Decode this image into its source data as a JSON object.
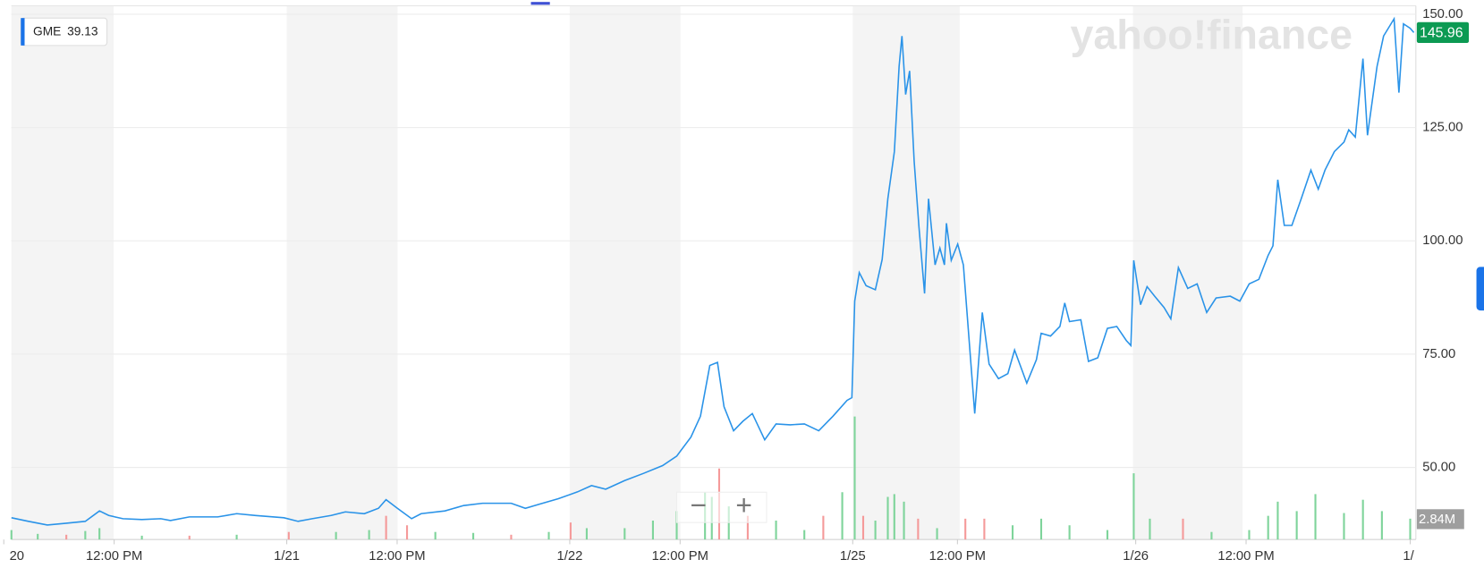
{
  "chart_data": {
    "type": "line",
    "watermark": "yahoo!finance",
    "legend": {
      "symbol": "GME",
      "value": 39.13
    },
    "controls": [
      "−",
      "+"
    ],
    "xlim": [
      0,
      5
    ],
    "xticks": [
      {
        "value": 0,
        "label": "20"
      },
      {
        "value": 0.39,
        "label": "12:00 PM"
      },
      {
        "value": 1,
        "label": "1/21"
      },
      {
        "value": 1.39,
        "label": "12:00 PM"
      },
      {
        "value": 2,
        "label": "1/22"
      },
      {
        "value": 2.39,
        "label": "12:00 PM"
      },
      {
        "value": 3,
        "label": "1/25"
      },
      {
        "value": 3.37,
        "label": "12:00 PM"
      },
      {
        "value": 4,
        "label": "1/26"
      },
      {
        "value": 4.39,
        "label": "12:00 PM"
      },
      {
        "value": 4.97,
        "label": "1/"
      }
    ],
    "ylim": [
      34.1,
      150
    ],
    "yticks": [
      {
        "value": 50,
        "label": "50.00"
      },
      {
        "value": 75,
        "label": "75.00"
      },
      {
        "value": 100,
        "label": "100.00"
      },
      {
        "value": 125,
        "label": "125.00"
      },
      {
        "value": 150,
        "label": "150.00"
      }
    ],
    "grid": true,
    "series": [
      {
        "name": "GME",
        "color": "#2a93e8",
        "x": [
          0.027,
          0.087,
          0.154,
          0.221,
          0.288,
          0.338,
          0.371,
          0.421,
          0.488,
          0.555,
          0.589,
          0.656,
          0.756,
          0.823,
          0.89,
          0.99,
          1.04,
          1.09,
          1.157,
          1.207,
          1.274,
          1.324,
          1.351,
          1.391,
          1.441,
          1.475,
          1.559,
          1.625,
          1.692,
          1.793,
          1.843,
          1.893,
          1.96,
          2.027,
          2.077,
          2.127,
          2.194,
          2.261,
          2.328,
          2.378,
          2.428,
          2.462,
          2.495,
          2.522,
          2.545,
          2.579,
          2.612,
          2.645,
          2.689,
          2.729,
          2.779,
          2.829,
          2.88,
          2.93,
          2.98,
          2.997,
          3.007,
          3.023,
          3.047,
          3.08,
          3.104,
          3.124,
          3.147,
          3.164,
          3.174,
          3.187,
          3.201,
          3.217,
          3.234,
          3.254,
          3.268,
          3.291,
          3.308,
          3.324,
          3.331,
          3.348,
          3.371,
          3.391,
          3.431,
          3.458,
          3.482,
          3.515,
          3.548,
          3.572,
          3.615,
          3.649,
          3.666,
          3.699,
          3.732,
          3.749,
          3.766,
          3.806,
          3.833,
          3.866,
          3.9,
          3.933,
          3.967,
          3.983,
          3.993,
          4.017,
          4.04,
          4.067,
          4.1,
          4.124,
          4.151,
          4.184,
          4.217,
          4.251,
          4.284,
          4.334,
          4.368,
          4.401,
          4.435,
          4.468,
          4.485,
          4.502,
          4.525,
          4.552,
          4.585,
          4.619,
          4.645,
          4.669,
          4.702,
          4.736,
          4.753,
          4.776,
          4.803,
          4.819,
          4.853,
          4.876,
          4.913,
          4.93,
          4.946,
          4.97,
          4.983
        ],
        "values": [
          38.9,
          38.1,
          37.3,
          37.7,
          38.1,
          40.4,
          39.4,
          38.7,
          38.5,
          38.7,
          38.3,
          39.1,
          39.1,
          39.8,
          39.4,
          38.9,
          38.1,
          38.7,
          39.4,
          40.2,
          39.8,
          41.0,
          42.9,
          41.0,
          38.7,
          39.8,
          40.4,
          41.6,
          42.1,
          42.1,
          41.0,
          41.9,
          43.1,
          44.6,
          46.0,
          45.2,
          47.1,
          48.7,
          50.4,
          52.5,
          56.7,
          61.3,
          72.5,
          73.2,
          63.4,
          58.1,
          60.2,
          61.9,
          56.1,
          59.6,
          59.4,
          59.6,
          58.1,
          61.3,
          64.8,
          65.4,
          86.7,
          93.0,
          90.1,
          89.2,
          95.9,
          109.3,
          119.7,
          138.5,
          145.2,
          132.3,
          137.5,
          117.6,
          103.0,
          88.4,
          109.3,
          94.7,
          98.4,
          94.7,
          103.9,
          95.7,
          99.3,
          94.7,
          61.9,
          84.2,
          72.8,
          69.6,
          70.7,
          75.9,
          68.6,
          73.8,
          79.6,
          79.0,
          81.1,
          86.3,
          82.2,
          82.6,
          73.4,
          74.2,
          80.7,
          81.1,
          78.0,
          76.9,
          95.7,
          85.9,
          89.9,
          87.8,
          85.3,
          82.8,
          94.1,
          89.5,
          90.5,
          84.2,
          87.4,
          87.8,
          86.7,
          90.5,
          91.5,
          96.8,
          98.9,
          113.5,
          103.4,
          103.4,
          109.3,
          115.6,
          111.4,
          115.6,
          119.7,
          121.8,
          124.5,
          122.9,
          140.2,
          123.3,
          138.5,
          145.2,
          149.0,
          132.7,
          147.9,
          146.9,
          145.96
        ]
      }
    ],
    "volume": {
      "vlim": [
        0,
        20
      ],
      "x": [
        0.027,
        0.12,
        0.221,
        0.288,
        0.338,
        0.488,
        0.656,
        0.823,
        1.007,
        1.174,
        1.291,
        1.351,
        1.425,
        1.525,
        1.659,
        1.793,
        1.926,
        2.003,
        2.06,
        2.194,
        2.294,
        2.378,
        2.478,
        2.502,
        2.528,
        2.562,
        2.629,
        2.729,
        2.829,
        2.896,
        2.963,
        3.007,
        3.037,
        3.08,
        3.124,
        3.147,
        3.181,
        3.231,
        3.298,
        3.398,
        3.465,
        3.565,
        3.666,
        3.766,
        3.9,
        3.993,
        4.05,
        4.167,
        4.268,
        4.401,
        4.468,
        4.502,
        4.569,
        4.635,
        4.736,
        4.803,
        4.87,
        4.97
      ],
      "values": [
        1.29,
        0.77,
        0.65,
        1.16,
        1.55,
        0.52,
        0.52,
        0.65,
        1.03,
        1.03,
        1.29,
        3.23,
        1.94,
        1.03,
        0.9,
        0.65,
        1.03,
        2.32,
        1.55,
        1.55,
        2.58,
        3.87,
        6.45,
        5.81,
        9.68,
        4.52,
        3.23,
        2.58,
        1.29,
        3.23,
        6.45,
        16.77,
        3.23,
        2.58,
        5.81,
        6.19,
        5.16,
        2.84,
        1.55,
        2.84,
        2.84,
        1.94,
        2.84,
        1.94,
        1.29,
        9.03,
        2.84,
        2.84,
        1.03,
        1.29,
        3.23,
        5.16,
        3.87,
        6.19,
        3.61,
        5.42,
        3.87,
        2.84
      ],
      "value_labels_last": "2.84M",
      "up_color": "#7fd49b",
      "down_color": "#f59a9a",
      "up": [
        true,
        true,
        false,
        true,
        true,
        true,
        false,
        true,
        false,
        true,
        true,
        false,
        false,
        true,
        true,
        false,
        true,
        false,
        true,
        true,
        true,
        true,
        true,
        true,
        false,
        true,
        false,
        true,
        true,
        false,
        true,
        true,
        false,
        true,
        true,
        true,
        true,
        false,
        true,
        false,
        false,
        true,
        true,
        true,
        true,
        true,
        true,
        false,
        true,
        true,
        true,
        true,
        true,
        true,
        true,
        true,
        true,
        true
      ]
    }
  }
}
